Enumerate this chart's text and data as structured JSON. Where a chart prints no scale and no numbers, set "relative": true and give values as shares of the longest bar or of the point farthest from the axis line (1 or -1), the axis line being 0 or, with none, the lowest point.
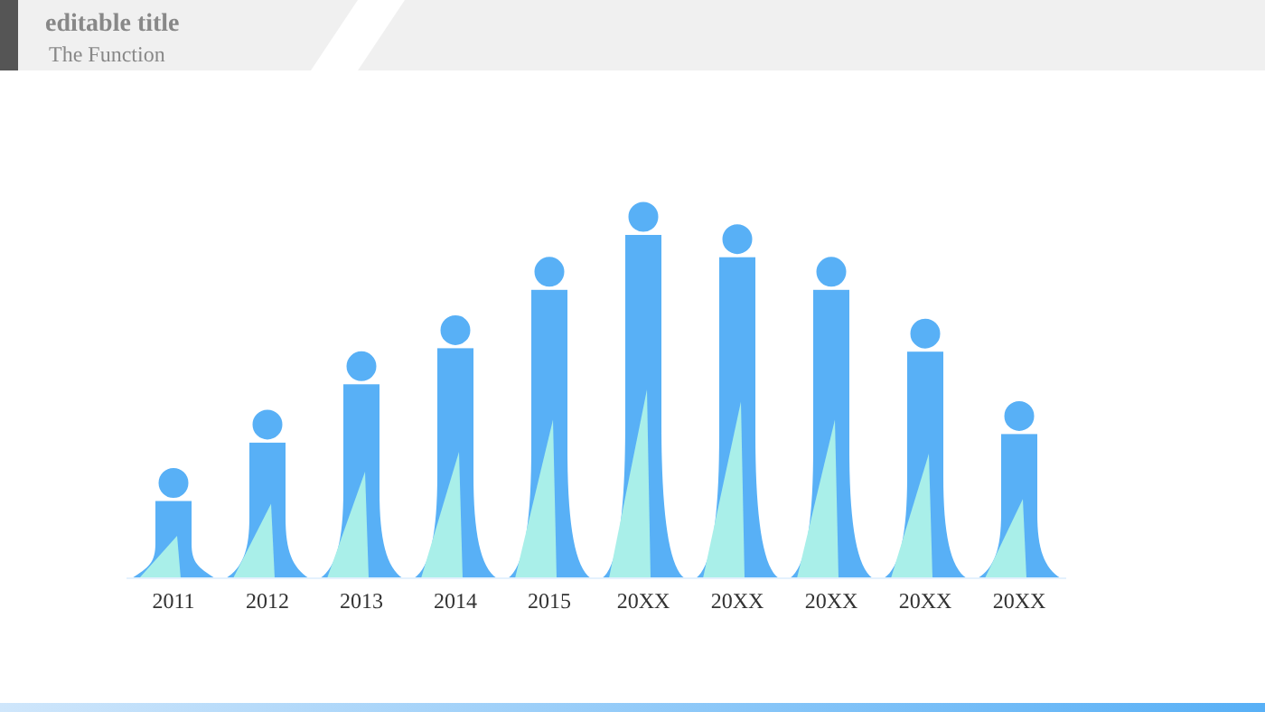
{
  "chart_data": {
    "type": "bar",
    "title": "editable title",
    "subtitle": "The Function",
    "relative": true,
    "categories": [
      "2011",
      "2012",
      "2013",
      "2014",
      "2015",
      "20XX",
      "20XX",
      "20XX",
      "20XX",
      "20XX"
    ],
    "values": [
      0.225,
      0.395,
      0.565,
      0.67,
      0.84,
      1,
      0.935,
      0.84,
      0.66,
      0.42
    ],
    "color": "#58b0f6"
  }
}
